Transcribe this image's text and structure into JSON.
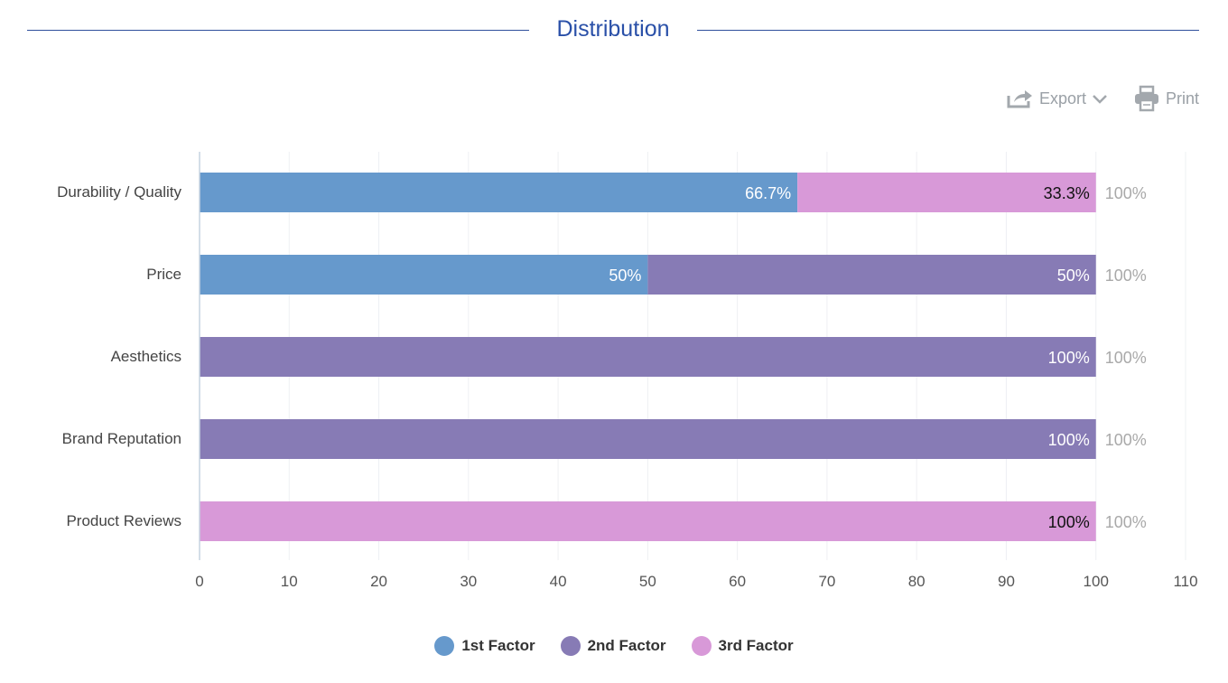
{
  "header": {
    "title": "Distribution"
  },
  "toolbar": {
    "export_label": "Export",
    "print_label": "Print",
    "export_icon": "share-icon",
    "print_icon": "printer-icon"
  },
  "colors": {
    "title": "#2a50a8",
    "rule": "#2e4f9c",
    "series": [
      "#6699cc",
      "#877bb5",
      "#d899d8"
    ],
    "grid": "#eef0f3",
    "axis": "#c5d3e0"
  },
  "chart_data": {
    "type": "bar",
    "orientation": "horizontal",
    "stacked": true,
    "categories": [
      "Durability / Quality",
      "Price",
      "Aesthetics",
      "Brand Reputation",
      "Product Reviews"
    ],
    "series": [
      {
        "name": "1st Factor",
        "values": [
          66.7,
          50,
          0,
          0,
          0
        ]
      },
      {
        "name": "2nd Factor",
        "values": [
          0,
          50,
          100,
          100,
          0
        ]
      },
      {
        "name": "3rd Factor",
        "values": [
          33.3,
          0,
          0,
          0,
          100
        ]
      }
    ],
    "data_labels": [
      [
        "66.7%",
        "50%",
        "",
        "",
        ""
      ],
      [
        "",
        "50%",
        "100%",
        "100%",
        ""
      ],
      [
        "33.3%",
        "",
        "",
        "",
        "100%"
      ]
    ],
    "totals": [
      "100%",
      "100%",
      "100%",
      "100%",
      "100%"
    ],
    "xlim": [
      0,
      110
    ],
    "xticks": [
      0,
      10,
      20,
      30,
      40,
      50,
      60,
      70,
      80,
      90,
      100,
      110
    ],
    "grid": true,
    "legend_position": "bottom-center"
  }
}
